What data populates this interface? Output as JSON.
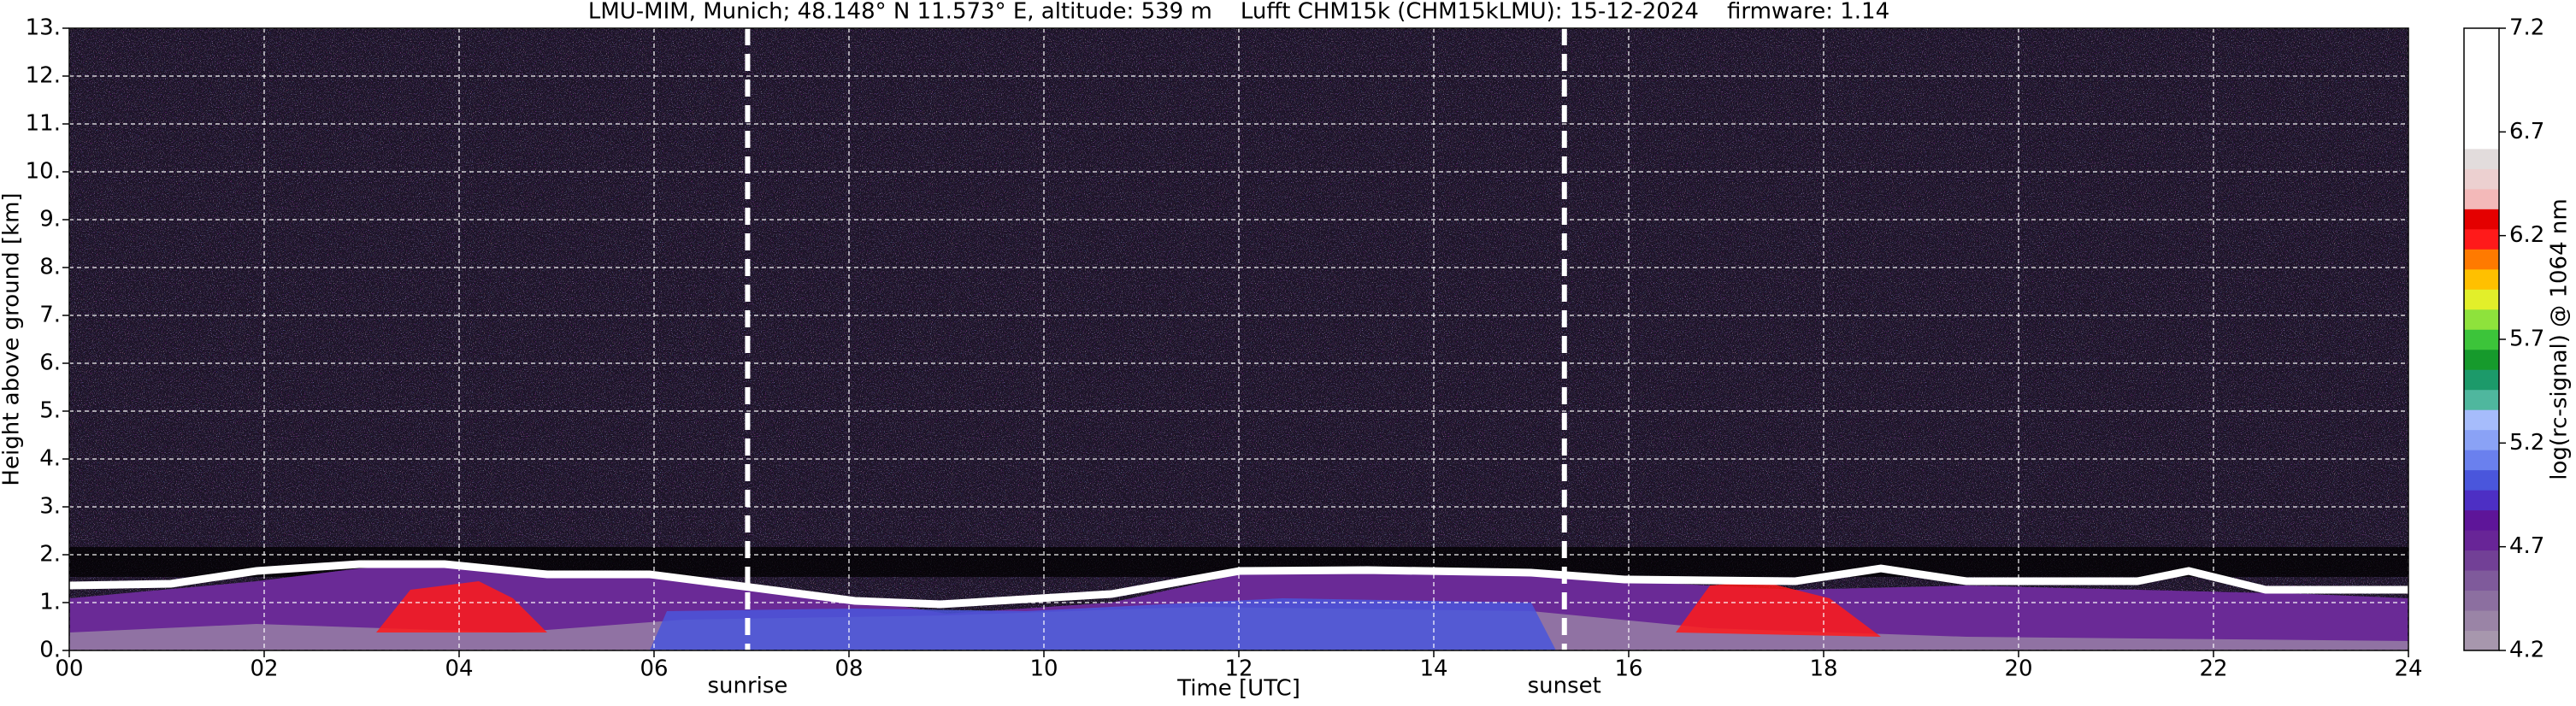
{
  "chart_data": {
    "type": "heatmap",
    "title": "LMU-MIM, Munich; 48.148° N 11.573° E, altitude: 539 m    Lufft CHM15k (CHM15kLMU): 15-12-2024    firmware: 1.14",
    "xlabel": "Time [UTC]",
    "ylabel": "Height above ground [km]",
    "xlim": [
      0,
      24
    ],
    "xticks": [
      {
        "value": 0,
        "label": "00"
      },
      {
        "value": 2,
        "label": "02"
      },
      {
        "value": 4,
        "label": "04"
      },
      {
        "value": 6,
        "label": "06"
      },
      {
        "value": 8,
        "label": "08"
      },
      10,
      12,
      14,
      16,
      18,
      20,
      22,
      24
    ],
    "ylim": [
      0,
      13
    ],
    "yticks": [
      {
        "value": 0,
        "label": "0."
      },
      {
        "value": 1,
        "label": "1."
      },
      {
        "value": 2,
        "label": "2."
      },
      {
        "value": 3,
        "label": "3."
      },
      {
        "value": 4,
        "label": "4."
      },
      {
        "value": 5,
        "label": "5."
      },
      {
        "value": 6,
        "label": "6."
      },
      {
        "value": 7,
        "label": "7."
      },
      {
        "value": 8,
        "label": "8."
      },
      {
        "value": 9,
        "label": "9."
      },
      {
        "value": 10,
        "label": "10."
      },
      {
        "value": 11,
        "label": "11."
      },
      {
        "value": 12,
        "label": "12."
      },
      {
        "value": 13,
        "label": "13."
      }
    ],
    "grid": true,
    "annotations": [
      {
        "label": "sunrise",
        "x": 6.96
      },
      {
        "label": "sunset",
        "x": 15.34
      }
    ],
    "colorbar": {
      "label": "log(rc-signal) @ 1064 nm",
      "lim": [
        4.2,
        7.2
      ],
      "ticks": [
        4.2,
        4.7,
        5.2,
        5.7,
        6.2,
        6.7,
        7.2
      ],
      "colors": [
        "#a797ad",
        "#9a84a6",
        "#8c6fa0",
        "#7f5a9b",
        "#724096",
        "#682597",
        "#5e1599",
        "#4d2fc4",
        "#4a56dc",
        "#6a80ee",
        "#8aa2f6",
        "#a6bcfb",
        "#4fb79e",
        "#1c9a6a",
        "#169a2c",
        "#3cc43a",
        "#8ee23c",
        "#e2ef2a",
        "#ffc000",
        "#ff7a00",
        "#ff1a1a",
        "#e40000",
        "#f3b9b9",
        "#ecd0d0",
        "#e2dcdc",
        "#ffffff",
        "#ffffff",
        "#ffffff",
        "#ffffff",
        "#ffffff",
        "#ffffff"
      ]
    }
  }
}
